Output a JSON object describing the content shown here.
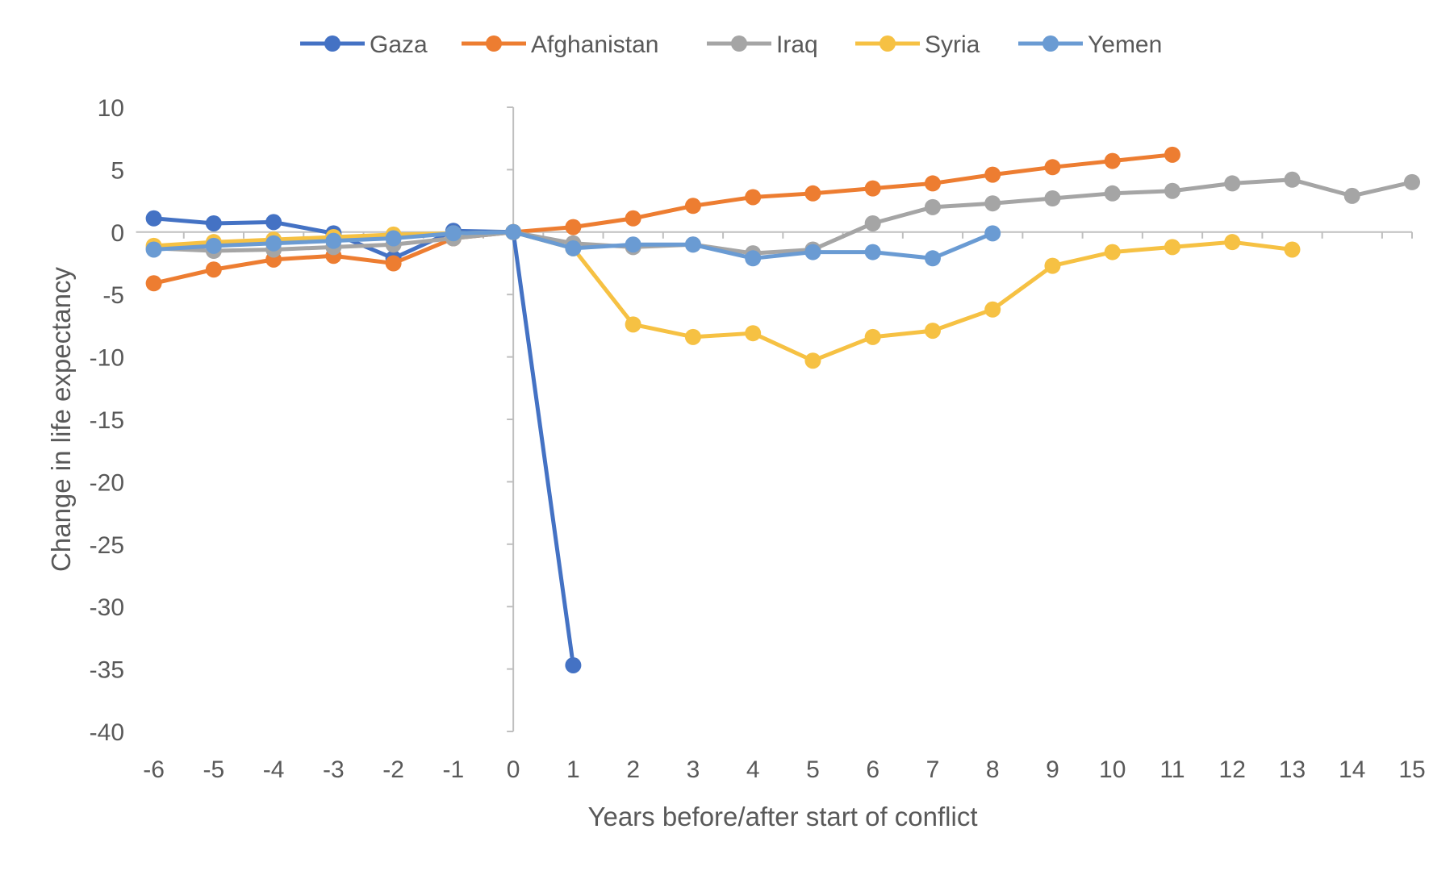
{
  "chart_data": {
    "type": "line",
    "title": "",
    "xlabel": "Years before/after start of conflict",
    "ylabel": "Change in life expectancy",
    "xlim": [
      -6,
      15
    ],
    "ylim": [
      -40,
      10
    ],
    "yticks": [
      10,
      5,
      0,
      -5,
      -10,
      -15,
      -20,
      -25,
      -30,
      -35,
      -40
    ],
    "xticks": [
      -6,
      -5,
      -4,
      -3,
      -2,
      -1,
      0,
      1,
      2,
      3,
      4,
      5,
      6,
      7,
      8,
      9,
      10,
      11,
      12,
      13,
      14,
      15
    ],
    "grid": false,
    "legend_position": "top",
    "series": [
      {
        "name": "Gaza",
        "color": "#4472C4",
        "x": [
          -6,
          -5,
          -4,
          -3,
          -2,
          -1,
          0,
          1
        ],
        "y": [
          1.1,
          0.7,
          0.8,
          -0.1,
          -2.1,
          0.1,
          0,
          -34.7
        ]
      },
      {
        "name": "Afghanistan",
        "color": "#ED7D31",
        "x": [
          -6,
          -5,
          -4,
          -3,
          -2,
          -1,
          0,
          1,
          2,
          3,
          4,
          5,
          6,
          7,
          8,
          9,
          10,
          11
        ],
        "y": [
          -4.1,
          -3.0,
          -2.2,
          -1.9,
          -2.5,
          -0.5,
          0,
          0.4,
          1.1,
          2.1,
          2.8,
          3.1,
          3.5,
          3.9,
          4.6,
          5.2,
          5.7,
          6.2
        ]
      },
      {
        "name": "Iraq",
        "color": "#A5A5A5",
        "x": [
          -6,
          -5,
          -4,
          -3,
          -2,
          -1,
          0,
          1,
          2,
          3,
          4,
          5,
          6,
          7,
          8,
          9,
          10,
          11,
          12,
          13,
          14,
          15
        ],
        "y": [
          -1.3,
          -1.5,
          -1.4,
          -1.2,
          -1.0,
          -0.5,
          0,
          -0.9,
          -1.2,
          -1.0,
          -1.7,
          -1.4,
          0.7,
          2.0,
          2.3,
          2.7,
          3.1,
          3.3,
          3.9,
          4.2,
          2.9,
          4.0
        ]
      },
      {
        "name": "Syria",
        "color": "#F6C143",
        "x": [
          -6,
          -5,
          -4,
          -3,
          -2,
          -1,
          0,
          1,
          2,
          3,
          4,
          5,
          6,
          7,
          8,
          9,
          10,
          11,
          12,
          13
        ],
        "y": [
          -1.1,
          -0.8,
          -0.6,
          -0.4,
          -0.2,
          -0.1,
          0,
          -1.3,
          -7.4,
          -8.4,
          -8.1,
          -10.3,
          -8.4,
          -7.9,
          -6.2,
          -2.7,
          -1.6,
          -1.2,
          -0.8,
          -1.4
        ]
      },
      {
        "name": "Yemen",
        "color": "#6A9BD3",
        "x": [
          -6,
          -5,
          -4,
          -3,
          -2,
          -1,
          0,
          1,
          2,
          3,
          4,
          5,
          6,
          7,
          8
        ],
        "y": [
          -1.4,
          -1.1,
          -0.9,
          -0.7,
          -0.5,
          -0.1,
          0,
          -1.3,
          -1.0,
          -1.0,
          -2.1,
          -1.6,
          -1.6,
          -2.1,
          -0.1
        ]
      }
    ]
  }
}
